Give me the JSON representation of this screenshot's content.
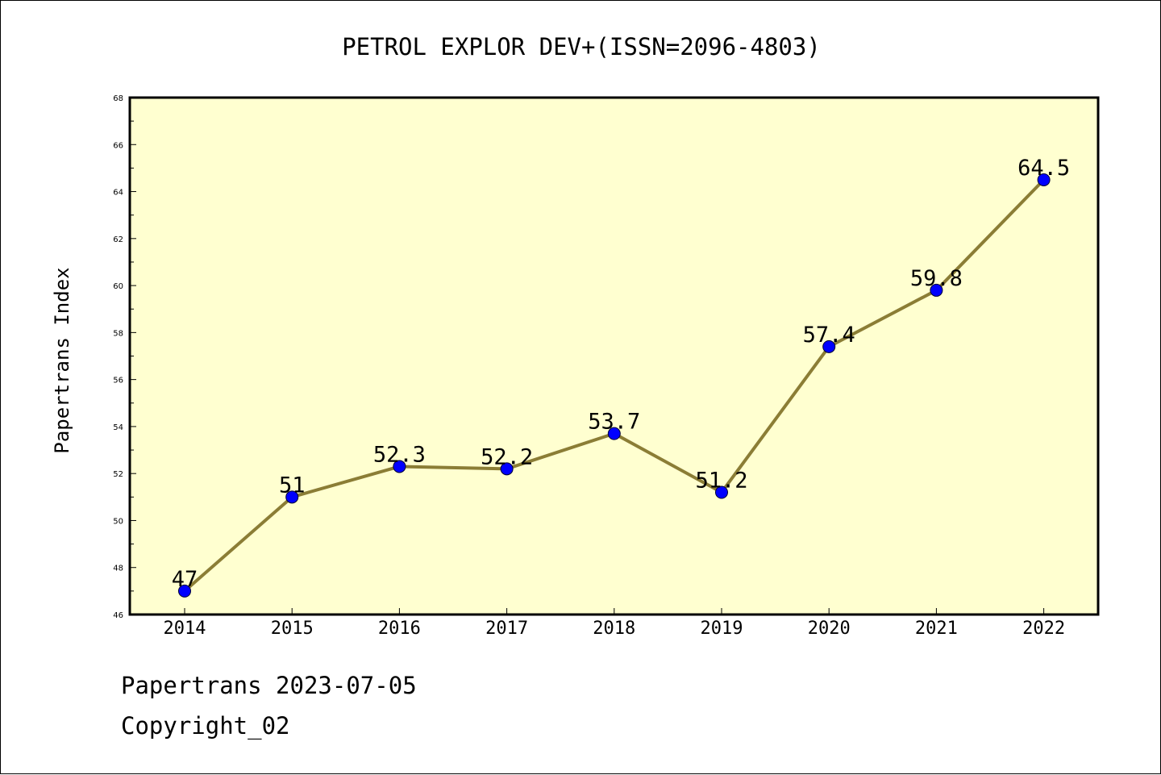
{
  "chart_data": {
    "type": "line",
    "title": "PETROL EXPLOR DEV+(ISSN=2096-4803)",
    "xlabel": "",
    "ylabel": "Papertrans Index",
    "categories": [
      "2014",
      "2015",
      "2016",
      "2017",
      "2018",
      "2019",
      "2020",
      "2021",
      "2022"
    ],
    "values": [
      47,
      51,
      52.3,
      52.2,
      53.7,
      51.2,
      57.4,
      59.8,
      64.5
    ],
    "data_labels": [
      "47",
      "51",
      "52.3",
      "52.2",
      "53.7",
      "51.2",
      "57.4",
      "59.8",
      "64.5"
    ],
    "ylim": [
      46,
      68
    ],
    "yticks": [
      46,
      48,
      50,
      52,
      54,
      56,
      58,
      60,
      62,
      64,
      66,
      68
    ],
    "grid": false,
    "legend": "none",
    "colors": {
      "plot_background": "#FFFFD0",
      "line": "#8B7D35",
      "marker": "#0000FF",
      "axis": "#000000"
    }
  },
  "footer": {
    "line1": "Papertrans 2023-07-05",
    "line2": "Copyright_02"
  }
}
